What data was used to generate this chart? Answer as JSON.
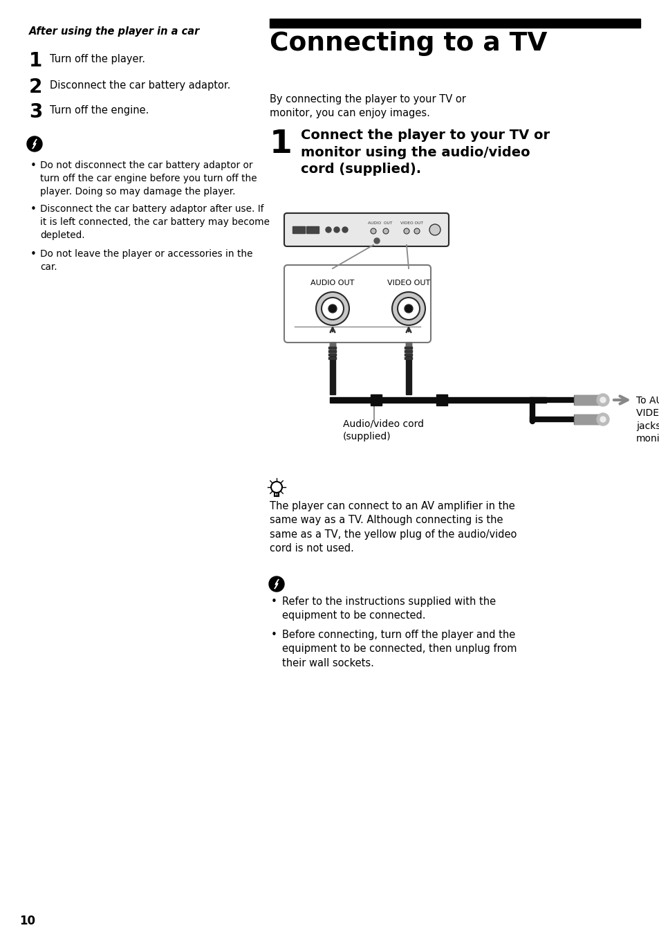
{
  "bg_color": "#ffffff",
  "page_number": "10",
  "left_heading": "After using the player in a car",
  "left_steps": [
    {
      "num": "1",
      "text": "Turn off the player."
    },
    {
      "num": "2",
      "text": "Disconnect the car battery adaptor."
    },
    {
      "num": "3",
      "text": "Turn off the engine."
    }
  ],
  "left_warn_bullets": [
    "Do not disconnect the car battery adaptor or\nturn off the car engine before you turn off the\nplayer. Doing so may damage the player.",
    "Disconnect the car battery adaptor after use. If\nit is left connected, the car battery may become\ndepleted.",
    "Do not leave the player or accessories in the\ncar."
  ],
  "right_title": "Connecting to a TV",
  "right_intro": "By connecting the player to your TV or\nmonitor, you can enjoy images.",
  "right_step1_text": "Connect the player to your TV or\nmonitor using the audio/video\ncord (supplied).",
  "diagram_audio_label": "AUDIO OUT",
  "diagram_video_label": "VIDEO OUT",
  "diagram_cord_label": "Audio/video cord\n(supplied)",
  "diagram_right_label": "To AUDIO/\nVIDEO input\njacks of a TV or\nmonitor",
  "tip_text": "The player can connect to an AV amplifier in the\nsame way as a TV. Although connecting is the\nsame as a TV, the yellow plug of the audio/video\ncord is not used.",
  "warn2_bullets": [
    "Refer to the instructions supplied with the\nequipment to be connected.",
    "Before connecting, turn off the player and the\nequipment to be connected, then unplug from\ntheir wall sockets."
  ]
}
